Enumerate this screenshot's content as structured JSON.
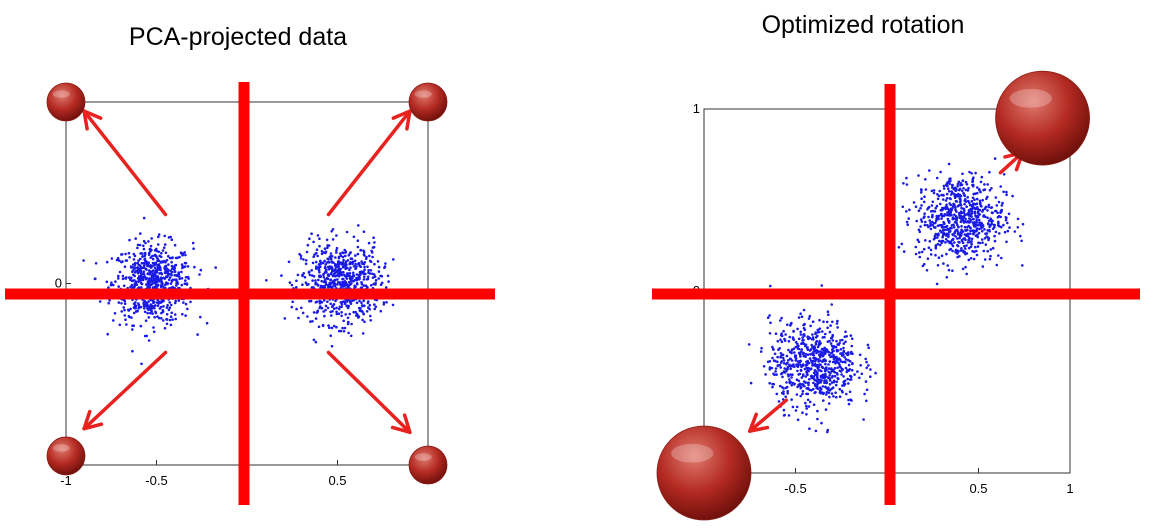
{
  "chart_data": [
    {
      "type": "scatter",
      "title": "PCA-projected data",
      "xlabel": "",
      "ylabel": "",
      "xlim": [
        -1,
        1
      ],
      "ylim": [
        -1,
        1
      ],
      "grid": false,
      "x_ticks": [
        {
          "value": -1,
          "label": "-1"
        },
        {
          "value": -0.5,
          "label": "-0.5"
        },
        {
          "value": 0.5,
          "label": "0.5"
        }
      ],
      "y_ticks": [
        {
          "value": 0,
          "label": "0"
        }
      ],
      "clusters": [
        {
          "center": [
            -0.52,
            0.0
          ],
          "spread": [
            0.11,
            0.11
          ],
          "count": 700
        },
        {
          "center": [
            0.52,
            0.0
          ],
          "spread": [
            0.11,
            0.11
          ],
          "count": 700
        }
      ],
      "divider_lines": {
        "x": 0,
        "y": 0,
        "color": "#ff0000"
      },
      "corner_spheres": [
        {
          "center": [
            -1.0,
            1.0
          ],
          "size": "small"
        },
        {
          "center": [
            1.0,
            1.0
          ],
          "size": "small"
        },
        {
          "center": [
            -1.0,
            -0.95
          ],
          "size": "small"
        },
        {
          "center": [
            1.0,
            -1.0
          ],
          "size": "small"
        }
      ],
      "arrows": [
        {
          "from": [
            -0.45,
            0.38
          ],
          "to": [
            -0.9,
            0.95
          ]
        },
        {
          "from": [
            0.45,
            0.38
          ],
          "to": [
            0.9,
            0.95
          ]
        },
        {
          "from": [
            -0.45,
            -0.38
          ],
          "to": [
            -0.9,
            -0.8
          ]
        },
        {
          "from": [
            0.45,
            -0.38
          ],
          "to": [
            0.9,
            -0.82
          ]
        }
      ]
    },
    {
      "type": "scatter",
      "title": "Optimized rotation",
      "xlabel": "",
      "ylabel": "",
      "xlim": [
        -1,
        1
      ],
      "ylim": [
        -1,
        1
      ],
      "grid": false,
      "x_ticks": [
        {
          "value": -0.5,
          "label": "-0.5"
        },
        {
          "value": 0.5,
          "label": "0.5"
        },
        {
          "value": 1,
          "label": "1"
        }
      ],
      "y_ticks": [
        {
          "value": 1,
          "label": "1"
        },
        {
          "value": 0,
          "label": "0"
        }
      ],
      "clusters": [
        {
          "center": [
            0.4,
            0.4
          ],
          "spread": [
            0.12,
            0.12
          ],
          "count": 700
        },
        {
          "center": [
            -0.4,
            -0.4
          ],
          "spread": [
            0.12,
            0.12
          ],
          "count": 700
        }
      ],
      "divider_lines": {
        "x": 0,
        "y": 0,
        "color": "#ff0000"
      },
      "corner_spheres": [
        {
          "center": [
            0.85,
            0.95
          ],
          "size": "large"
        },
        {
          "center": [
            -1.0,
            -1.0
          ],
          "size": "large"
        }
      ],
      "arrows": [
        {
          "from": [
            0.62,
            0.65
          ],
          "to": [
            0.74,
            0.76
          ]
        },
        {
          "from": [
            -0.55,
            -0.6
          ],
          "to": [
            -0.75,
            -0.77
          ]
        }
      ]
    }
  ],
  "colors": {
    "points": "#1a1ae6",
    "divider": "#ff0000",
    "arrow": "#e8221f",
    "sphere_light": "#e07a6e",
    "sphere_mid": "#b32a22",
    "sphere_dark": "#6e0f0b",
    "axes": "#333333"
  }
}
